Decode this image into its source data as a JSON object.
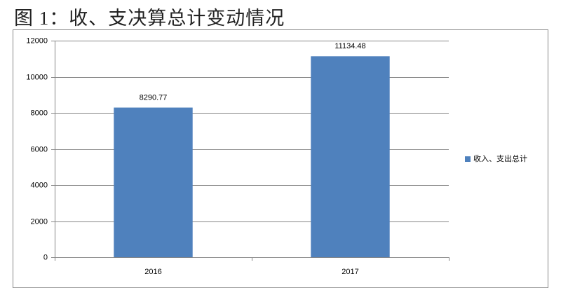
{
  "chart_data": {
    "type": "bar",
    "title": "图 1：收、支决算总计变动情况",
    "categories": [
      "2016",
      "2017"
    ],
    "series": [
      {
        "name": "收入、支出总计",
        "color": "#4f81bd",
        "values": [
          8290.77,
          11134.48
        ]
      }
    ],
    "ylim": [
      0,
      12000
    ],
    "yticks": [
      0,
      2000,
      4000,
      6000,
      8000,
      10000,
      12000
    ],
    "grid": true,
    "legend": "right",
    "data_labels": true
  }
}
